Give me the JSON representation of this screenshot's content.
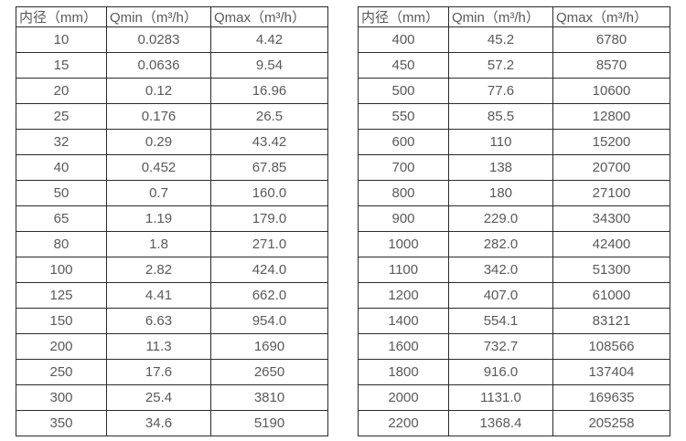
{
  "page": {
    "background": "#ffffff",
    "text_color": "#595959",
    "border_color": "#2b2b2b"
  },
  "tables": [
    {
      "name": "flow-table-small-diameters",
      "headers": [
        "内径（mm）",
        "Qmin（m³/h）",
        "Qmax（m³/h）"
      ],
      "rows": [
        [
          "10",
          "0.0283",
          "4.42"
        ],
        [
          "15",
          "0.0636",
          "9.54"
        ],
        [
          "20",
          "0.12",
          "16.96"
        ],
        [
          "25",
          "0.176",
          "26.5"
        ],
        [
          "32",
          "0.29",
          "43.42"
        ],
        [
          "40",
          "0.452",
          "67.85"
        ],
        [
          "50",
          "0.7",
          "160.0"
        ],
        [
          "65",
          "1.19",
          "179.0"
        ],
        [
          "80",
          "1.8",
          "271.0"
        ],
        [
          "100",
          "2.82",
          "424.0"
        ],
        [
          "125",
          "4.41",
          "662.0"
        ],
        [
          "150",
          "6.63",
          "954.0"
        ],
        [
          "200",
          "11.3",
          "1690"
        ],
        [
          "250",
          "17.6",
          "2650"
        ],
        [
          "300",
          "25.4",
          "3810"
        ],
        [
          "350",
          "34.6",
          "5190"
        ]
      ]
    },
    {
      "name": "flow-table-large-diameters",
      "headers": [
        "内径（mm）",
        "Qmin（m³/h）",
        "Qmax（m³/h）"
      ],
      "rows": [
        [
          "400",
          "45.2",
          "6780"
        ],
        [
          "450",
          "57.2",
          "8570"
        ],
        [
          "500",
          "77.6",
          "10600"
        ],
        [
          "550",
          "85.5",
          "12800"
        ],
        [
          "600",
          "110",
          "15200"
        ],
        [
          "700",
          "138",
          "20700"
        ],
        [
          "800",
          "180",
          "27100"
        ],
        [
          "900",
          "229.0",
          "34300"
        ],
        [
          "1000",
          "282.0",
          "42400"
        ],
        [
          "1100",
          "342.0",
          "51300"
        ],
        [
          "1200",
          "407.0",
          "61000"
        ],
        [
          "1400",
          "554.1",
          "83121"
        ],
        [
          "1600",
          "732.7",
          "108566"
        ],
        [
          "1800",
          "916.0",
          "137404"
        ],
        [
          "2000",
          "1131.0",
          "169635"
        ],
        [
          "2200",
          "1368.4",
          "205258"
        ]
      ]
    }
  ]
}
